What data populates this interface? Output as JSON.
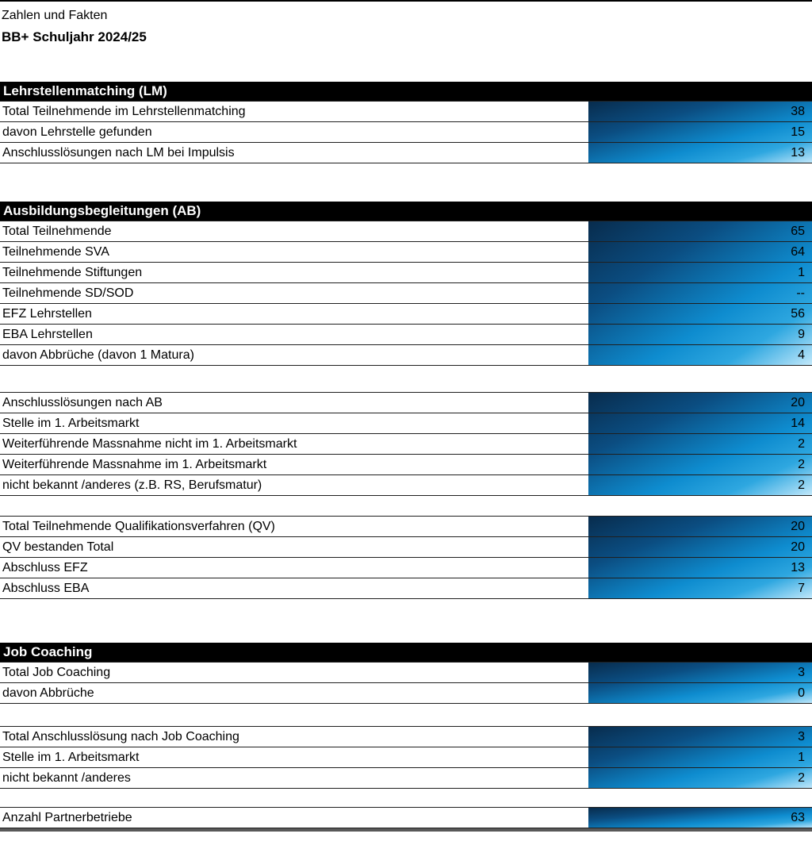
{
  "colors": {
    "header_bg": "#000000",
    "header_text": "#ffffff",
    "line": "#1f1f1f",
    "line_strong": "#000000",
    "grad_dark": "#082c4d",
    "grad_mid": "#0e8ccf",
    "grad_light": "#c4e9fb",
    "footer_bar": "#595959"
  },
  "title": {
    "line1": "Zahlen und Fakten",
    "line2": "BB+ Schuljahr 2024/25"
  },
  "lm": {
    "header": "Lehrstellenmatching (LM)",
    "rows": [
      {
        "label": "Total Teilnehmende im Lehrstellenmatching",
        "value": "38"
      },
      {
        "label": "davon Lehrstelle gefunden",
        "value": "15"
      },
      {
        "label": "Anschlusslösungen nach LM bei Impulsis",
        "value": "13"
      }
    ]
  },
  "ab": {
    "header": "Ausbildungsbegleitungen (AB)",
    "rows": [
      {
        "label": "Total Teilnehmende",
        "value": "65"
      },
      {
        "label": "Teilnehmende SVA",
        "value": "64"
      },
      {
        "label": "Teilnehmende Stiftungen",
        "value": "1"
      },
      {
        "label": "Teilnehmende SD/SOD",
        "value": "--"
      },
      {
        "label": "EFZ Lehrstellen",
        "value": "56"
      },
      {
        "label": "EBA Lehrstellen",
        "value": "9"
      },
      {
        "label": "davon Abbrüche (davon 1 Matura)",
        "value": "4"
      }
    ]
  },
  "ab_anschluss": {
    "rows": [
      {
        "label": "Anschlusslösungen nach AB",
        "value": "20"
      },
      {
        "label": "Stelle im 1. Arbeitsmarkt",
        "value": "14"
      },
      {
        "label": "Weiterführende Massnahme nicht im 1. Arbeitsmarkt",
        "value": "2"
      },
      {
        "label": "Weiterführende Massnahme im 1. Arbeitsmarkt",
        "value": "2"
      },
      {
        "label": "nicht bekannt /anderes (z.B. RS, Berufsmatur)",
        "value": "2"
      }
    ]
  },
  "qv": {
    "rows": [
      {
        "label": "Total Teilnehmende Qualifikationsverfahren (QV)",
        "value": "20"
      },
      {
        "label": "QV bestanden Total",
        "value": "20"
      },
      {
        "label": "Abschluss EFZ",
        "value": "13"
      },
      {
        "label": "Abschluss EBA",
        "value": "7"
      }
    ]
  },
  "jc": {
    "header": "Job Coaching",
    "rows": [
      {
        "label": "Total Job Coaching",
        "value": "3"
      },
      {
        "label": "davon Abbrüche",
        "value": "0"
      }
    ]
  },
  "jc_anschluss": {
    "rows": [
      {
        "label": "Total Anschlusslösung nach Job Coaching",
        "value": "3"
      },
      {
        "label": "Stelle im 1. Arbeitsmarkt",
        "value": "1"
      },
      {
        "label": "nicht bekannt /anderes",
        "value": "2"
      }
    ]
  },
  "partner": {
    "rows": [
      {
        "label": "Anzahl Partnerbetriebe",
        "value": "63"
      }
    ]
  }
}
